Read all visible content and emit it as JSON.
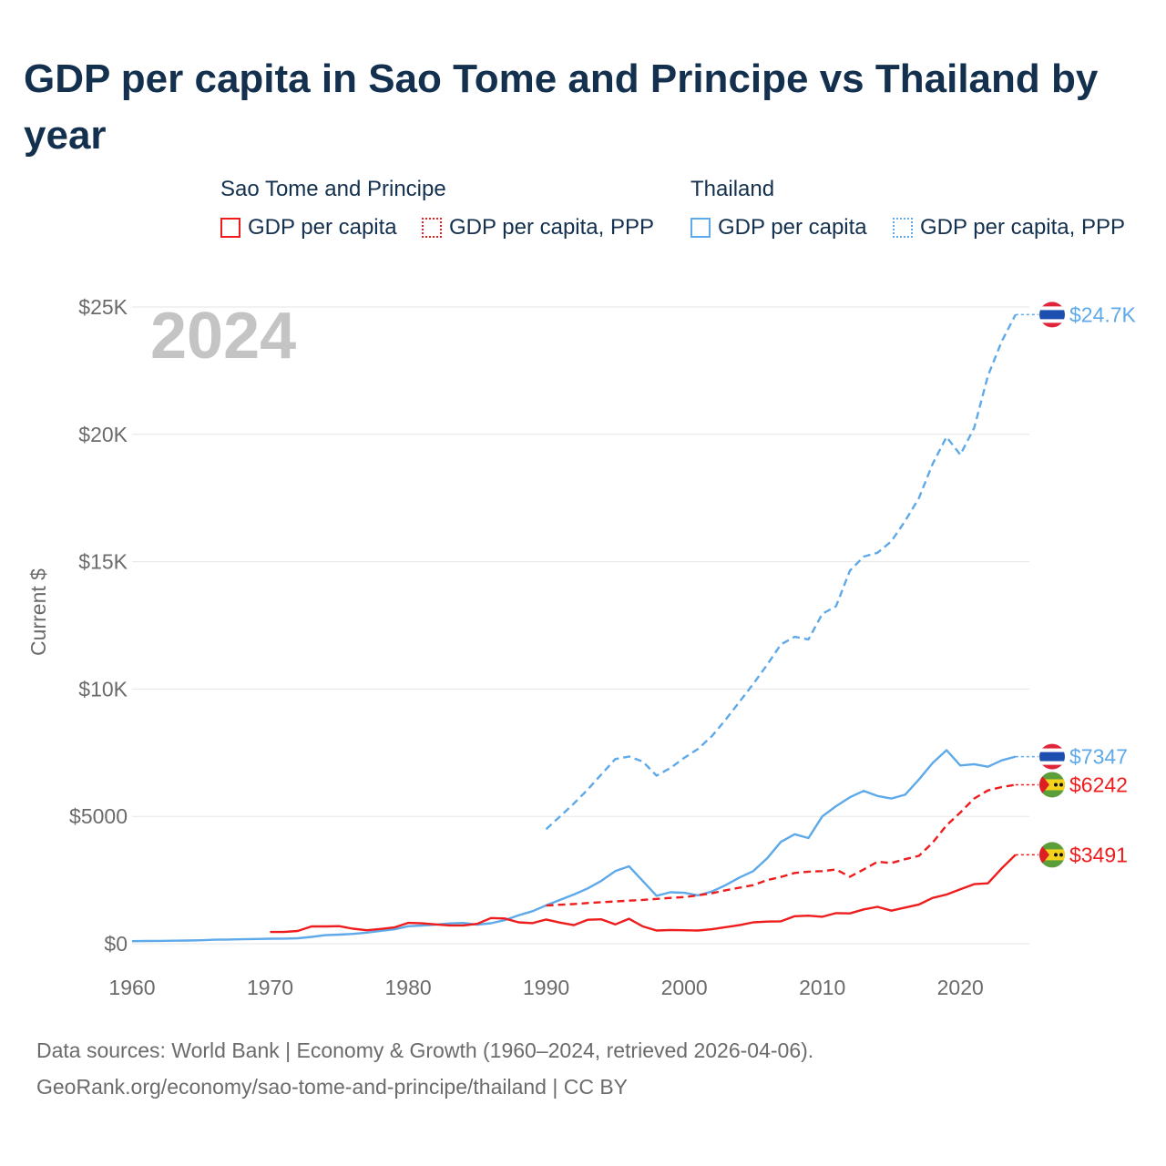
{
  "title": "GDP per capita in Sao Tome and Principe vs Thailand by year",
  "legend": {
    "groups": [
      {
        "name": "Sao Tome and Principe",
        "color": "#ee1c1c",
        "items": [
          {
            "label": "GDP per capita",
            "style": "solid"
          },
          {
            "label": "GDP per capita, PPP",
            "style": "dotted"
          }
        ]
      },
      {
        "name": "Thailand",
        "color": "#5da9e9",
        "items": [
          {
            "label": "GDP per capita",
            "style": "solid"
          },
          {
            "label": "GDP per capita, PPP",
            "style": "dotted"
          }
        ]
      }
    ]
  },
  "footer": {
    "line1": "Data sources: World Bank | Economy & Growth (1960–2024, retrieved 2026-04-06).",
    "line2": "GeoRank.org/economy/sao-tome-and-principe/thailand | CC BY"
  },
  "chart_data": {
    "type": "line",
    "title": "GDP per capita in Sao Tome and Principe vs Thailand by year",
    "year_watermark": "2024",
    "xlabel": "",
    "ylabel": "Current $",
    "xlim": [
      1960,
      2025
    ],
    "ylim": [
      0,
      25000
    ],
    "x_ticks": [
      1960,
      1970,
      1980,
      1990,
      2000,
      2010,
      2020
    ],
    "y_ticks": [
      0,
      5000,
      10000,
      15000,
      20000,
      25000
    ],
    "y_tick_labels": [
      "$0",
      "$5000",
      "$10K",
      "$15K",
      "$20K",
      "$25K"
    ],
    "grid": true,
    "series": [
      {
        "name": "Thailand GDP per capita, PPP",
        "color": "#5da9e9",
        "dash": "dashed",
        "end_label": "$24.7K",
        "flag": "thailand-flag",
        "x": [
          1990,
          1991,
          1992,
          1993,
          1994,
          1995,
          1996,
          1997,
          1998,
          1999,
          2000,
          2001,
          2002,
          2003,
          2004,
          2005,
          2006,
          2007,
          2008,
          2009,
          2010,
          2011,
          2012,
          2013,
          2014,
          2015,
          2016,
          2017,
          2018,
          2019,
          2020,
          2021,
          2022,
          2023,
          2024
        ],
        "values": [
          4500,
          5000,
          5500,
          6050,
          6650,
          7250,
          7350,
          7150,
          6600,
          6900,
          7300,
          7650,
          8150,
          8800,
          9500,
          10200,
          10950,
          11750,
          12050,
          11950,
          12950,
          13250,
          14650,
          15200,
          15350,
          15800,
          16600,
          17500,
          18850,
          19900,
          19200,
          20250,
          22300,
          23650,
          24700
        ]
      },
      {
        "name": "Thailand GDP per capita",
        "color": "#5da9e9",
        "dash": "solid",
        "end_label": "$7347",
        "flag": "thailand-flag",
        "x": [
          1960,
          1961,
          1962,
          1963,
          1964,
          1965,
          1966,
          1967,
          1968,
          1969,
          1970,
          1971,
          1972,
          1973,
          1974,
          1975,
          1976,
          1977,
          1978,
          1979,
          1980,
          1981,
          1982,
          1983,
          1984,
          1985,
          1986,
          1987,
          1988,
          1989,
          1990,
          1991,
          1992,
          1993,
          1994,
          1995,
          1996,
          1997,
          1998,
          1999,
          2000,
          2001,
          2002,
          2003,
          2004,
          2005,
          2006,
          2007,
          2008,
          2009,
          2010,
          2011,
          2012,
          2013,
          2014,
          2015,
          2016,
          2017,
          2018,
          2019,
          2020,
          2021,
          2022,
          2023,
          2024
        ],
        "values": [
          100,
          106,
          112,
          118,
          126,
          136,
          156,
          166,
          176,
          186,
          196,
          200,
          216,
          270,
          336,
          356,
          386,
          436,
          506,
          566,
          686,
          716,
          746,
          796,
          816,
          746,
          806,
          926,
          1116,
          1276,
          1505,
          1720,
          1930,
          2170,
          2470,
          2850,
          3040,
          2460,
          1880,
          2020,
          2000,
          1900,
          2050,
          2300,
          2600,
          2850,
          3350,
          4000,
          4300,
          4150,
          5000,
          5400,
          5750,
          6000,
          5800,
          5700,
          5850,
          6450,
          7100,
          7600,
          7000,
          7050,
          6950,
          7200,
          7347
        ]
      },
      {
        "name": "Sao Tome and Principe GDP per capita, PPP",
        "color": "#ee1c1c",
        "dash": "dashed",
        "end_label": "$6242",
        "flag": "sao-tome-flag",
        "x": [
          1990,
          1991,
          1992,
          1993,
          1994,
          1995,
          1996,
          1997,
          1998,
          1999,
          2000,
          2001,
          2002,
          2003,
          2004,
          2005,
          2006,
          2007,
          2008,
          2009,
          2010,
          2011,
          2012,
          2013,
          2014,
          2015,
          2016,
          2017,
          2018,
          2019,
          2020,
          2021,
          2022,
          2023,
          2024
        ],
        "values": [
          1500,
          1530,
          1560,
          1600,
          1630,
          1660,
          1690,
          1720,
          1760,
          1800,
          1830,
          1900,
          1980,
          2100,
          2200,
          2300,
          2500,
          2620,
          2780,
          2830,
          2850,
          2920,
          2630,
          2920,
          3220,
          3170,
          3320,
          3450,
          3970,
          4650,
          5150,
          5700,
          6020,
          6150,
          6242
        ]
      },
      {
        "name": "Sao Tome and Principe GDP per capita",
        "color": "#ee1c1c",
        "dash": "solid",
        "end_label": "$3491",
        "flag": "sao-tome-flag",
        "x": [
          1970,
          1971,
          1972,
          1973,
          1974,
          1975,
          1976,
          1977,
          1978,
          1979,
          1980,
          1981,
          1982,
          1983,
          1984,
          1985,
          1986,
          1987,
          1988,
          1989,
          1990,
          1991,
          1992,
          1993,
          1994,
          1995,
          1996,
          1997,
          1998,
          1999,
          2000,
          2001,
          2002,
          2003,
          2004,
          2005,
          2006,
          2007,
          2008,
          2009,
          2010,
          2011,
          2012,
          2013,
          2014,
          2015,
          2016,
          2017,
          2018,
          2019,
          2020,
          2021,
          2022,
          2023,
          2024
        ],
        "values": [
          460,
          460,
          500,
          680,
          680,
          690,
          590,
          530,
          580,
          640,
          820,
          800,
          760,
          720,
          720,
          780,
          1010,
          990,
          840,
          810,
          950,
          830,
          730,
          940,
          960,
          760,
          980,
          680,
          520,
          540,
          530,
          520,
          570,
          650,
          730,
          840,
          870,
          880,
          1080,
          1100,
          1060,
          1200,
          1190,
          1350,
          1450,
          1300,
          1420,
          1540,
          1800,
          1930,
          2140,
          2340,
          2370,
          2960,
          3491
        ]
      }
    ]
  }
}
